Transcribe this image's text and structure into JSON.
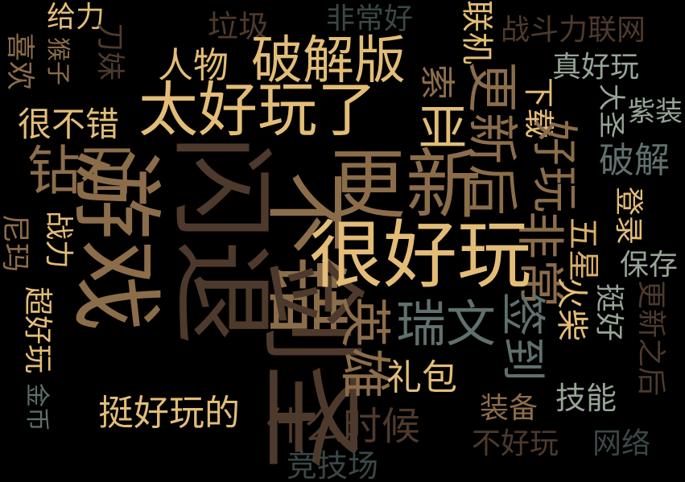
{
  "palette": {
    "background": "#000000",
    "gold": "#e3bd77",
    "brown": "#8c6d4a",
    "dark_brown": "#4e3a2c",
    "slate": "#5f706d",
    "sage": "#97a596",
    "dark_slate": "#3a4846"
  },
  "words": [
    "给力",
    "垃圾",
    "非常好",
    "联机",
    "战斗力联网",
    "喜欢",
    "猴子",
    "刀妹",
    "人物",
    "破解版",
    "索",
    "真好玩",
    "很不错",
    "太好玩了",
    "亚",
    "更新后",
    "下载",
    "大圣",
    "紫装",
    "钻石",
    "游戏",
    "闪退",
    "不错",
    "更新",
    "好玩",
    "非常",
    "破解",
    "尼玛",
    "战力",
    "剑圣",
    "英雄",
    "很好玩",
    "五星",
    "登录",
    "超好玩",
    "瑞文",
    "保存",
    "签到",
    "火柴",
    "挺好",
    "更新之后",
    "金币",
    "礼包",
    "挺好玩的",
    "技能",
    "装备",
    "什么时候",
    "不好玩",
    "网络",
    "竞技场"
  ]
}
